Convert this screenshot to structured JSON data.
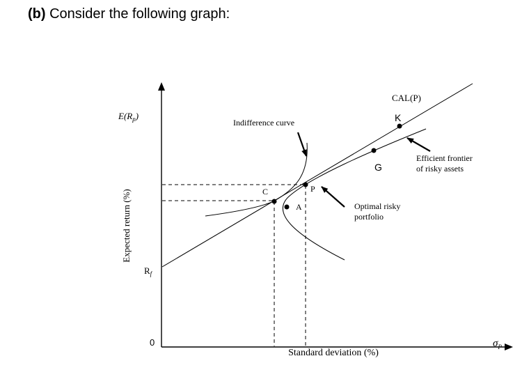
{
  "heading": {
    "part": "(b)",
    "text": " Consider the following graph:"
  },
  "graph": {
    "y_axis_symbol": "E(R",
    "y_axis_symbol_sub": "p",
    "y_axis_symbol_close": ")",
    "y_axis_label": "Expected return (%)",
    "x_axis_label": "Standard deviation (%)",
    "x_axis_symbol": "σ",
    "x_axis_symbol_sub": "P",
    "origin_label": "0",
    "rf_label": "R",
    "rf_sub": "f",
    "cal_label": "CAL(P)",
    "indifference_label": "Indifference curve",
    "frontier_label_line1": "Efficient frontier",
    "frontier_label_line2": "of risky assets",
    "optimal_label_line1": "Optimal risky",
    "optimal_label_line2": "portfolio",
    "points": {
      "k": "K",
      "g": "G",
      "p": "P",
      "c": "C",
      "a": "A"
    }
  }
}
